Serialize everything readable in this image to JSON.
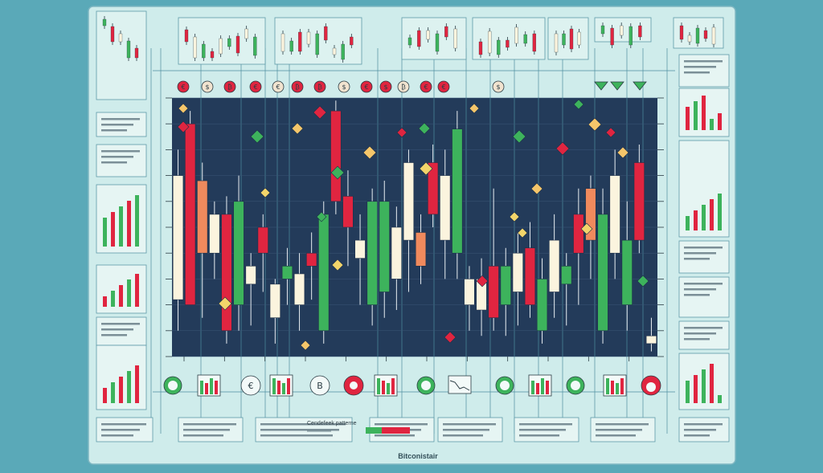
{
  "brand": "Bitconistair",
  "pattern_label": "Cendefeek patterne",
  "colors": {
    "background": "#5aa9b8",
    "panel": "#cfeceb",
    "chart_bg": "#233b5a",
    "bull": "#3db35c",
    "bear": "#e02540",
    "neutral": "#fbf4de",
    "orange": "#f08a5d",
    "gold": "#f5c66a"
  },
  "legend_icons": [
    "euro-icon",
    "bitcoin-icon",
    "chart-icon"
  ],
  "icon_glyphs": {
    "top": [
      "€",
      "$",
      "₿",
      "€",
      "€",
      "₿",
      "₿",
      "$",
      "€",
      "$",
      "₿",
      "€"
    ],
    "euro": "€",
    "bitcoin": "B"
  },
  "chart_data": {
    "type": "candlestick",
    "title": "",
    "xlabel": "",
    "ylabel": "",
    "ylim": [
      0,
      100
    ],
    "grid": true,
    "series": [
      {
        "values": [
          {
            "o": 22,
            "h": 80,
            "l": 10,
            "c": 70,
            "dir": "neutral"
          },
          {
            "o": 90,
            "h": 95,
            "l": 25,
            "c": 20,
            "dir": "bear"
          },
          {
            "o": 68,
            "h": 75,
            "l": 15,
            "c": 40,
            "dir": "orange"
          },
          {
            "o": 55,
            "h": 60,
            "l": 30,
            "c": 40,
            "dir": "neutral"
          },
          {
            "o": 10,
            "h": 62,
            "l": 5,
            "c": 55,
            "dir": "bear"
          },
          {
            "o": 20,
            "h": 70,
            "l": 10,
            "c": 60,
            "dir": "bull"
          },
          {
            "o": 28,
            "h": 40,
            "l": 12,
            "c": 35,
            "dir": "neutral"
          },
          {
            "o": 40,
            "h": 55,
            "l": 25,
            "c": 50,
            "dir": "bear"
          },
          {
            "o": 15,
            "h": 30,
            "l": 5,
            "c": 28,
            "dir": "neutral"
          },
          {
            "o": 30,
            "h": 42,
            "l": 20,
            "c": 35,
            "dir": "bull"
          },
          {
            "o": 20,
            "h": 40,
            "l": 10,
            "c": 32,
            "dir": "neutral"
          },
          {
            "o": 35,
            "h": 48,
            "l": 22,
            "c": 40,
            "dir": "bear"
          },
          {
            "o": 10,
            "h": 60,
            "l": 5,
            "c": 55,
            "dir": "bull"
          },
          {
            "o": 95,
            "h": 99,
            "l": 55,
            "c": 60,
            "dir": "bear"
          },
          {
            "o": 62,
            "h": 72,
            "l": 35,
            "c": 50,
            "dir": "bear"
          },
          {
            "o": 38,
            "h": 55,
            "l": 20,
            "c": 45,
            "dir": "neutral"
          },
          {
            "o": 20,
            "h": 65,
            "l": 12,
            "c": 60,
            "dir": "bull"
          },
          {
            "o": 60,
            "h": 68,
            "l": 15,
            "c": 25,
            "dir": "bull"
          },
          {
            "o": 30,
            "h": 58,
            "l": 18,
            "c": 50,
            "dir": "neutral"
          },
          {
            "o": 45,
            "h": 80,
            "l": 25,
            "c": 75,
            "dir": "neutral"
          },
          {
            "o": 48,
            "h": 55,
            "l": 28,
            "c": 35,
            "dir": "orange"
          },
          {
            "o": 75,
            "h": 82,
            "l": 50,
            "c": 55,
            "dir": "bear"
          },
          {
            "o": 70,
            "h": 80,
            "l": 30,
            "c": 45,
            "dir": "neutral"
          },
          {
            "o": 88,
            "h": 95,
            "l": 30,
            "c": 40,
            "dir": "bull"
          },
          {
            "o": 20,
            "h": 35,
            "l": 10,
            "c": 30,
            "dir": "neutral"
          },
          {
            "o": 18,
            "h": 38,
            "l": 8,
            "c": 30,
            "dir": "neutral"
          },
          {
            "o": 35,
            "h": 65,
            "l": 10,
            "c": 15,
            "dir": "bear"
          },
          {
            "o": 20,
            "h": 42,
            "l": 8,
            "c": 35,
            "dir": "bull"
          },
          {
            "o": 25,
            "h": 48,
            "l": 12,
            "c": 40,
            "dir": "neutral"
          },
          {
            "o": 42,
            "h": 52,
            "l": 15,
            "c": 20,
            "dir": "bear"
          },
          {
            "o": 10,
            "h": 38,
            "l": 5,
            "c": 30,
            "dir": "bull"
          },
          {
            "o": 25,
            "h": 55,
            "l": 15,
            "c": 45,
            "dir": "neutral"
          },
          {
            "o": 28,
            "h": 40,
            "l": 12,
            "c": 35,
            "dir": "bull"
          },
          {
            "o": 55,
            "h": 65,
            "l": 20,
            "c": 40,
            "dir": "bear"
          },
          {
            "o": 65,
            "h": 70,
            "l": 30,
            "c": 45,
            "dir": "orange"
          },
          {
            "o": 55,
            "h": 65,
            "l": 5,
            "c": 10,
            "dir": "bull"
          },
          {
            "o": 40,
            "h": 80,
            "l": 30,
            "c": 70,
            "dir": "neutral"
          },
          {
            "o": 20,
            "h": 60,
            "l": 10,
            "c": 45,
            "dir": "bull"
          },
          {
            "o": 75,
            "h": 82,
            "l": 40,
            "c": 45,
            "dir": "bear"
          },
          {
            "o": 5,
            "h": 15,
            "l": 2,
            "c": 8,
            "dir": "neutral"
          }
        ]
      }
    ]
  }
}
